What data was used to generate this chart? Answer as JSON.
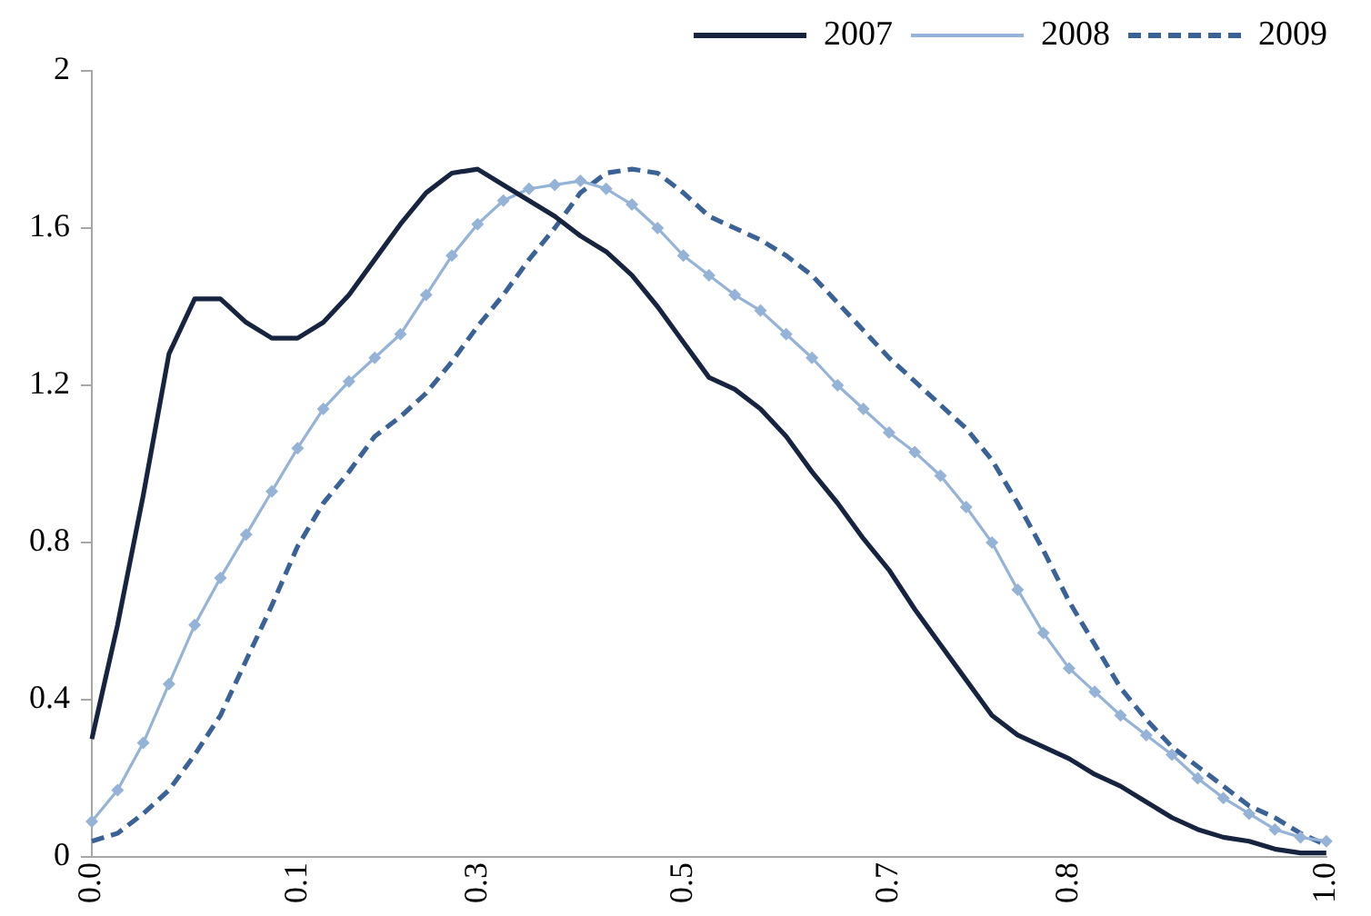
{
  "chart_data": {
    "type": "line",
    "categories": [
      "0.0",
      null,
      null,
      null,
      null,
      null,
      null,
      null,
      "0.1",
      null,
      null,
      null,
      null,
      null,
      null,
      "0.3",
      null,
      null,
      null,
      null,
      null,
      null,
      null,
      "0.5",
      null,
      null,
      null,
      null,
      null,
      null,
      null,
      "0.7",
      null,
      null,
      null,
      null,
      null,
      null,
      "0.8",
      null,
      null,
      null,
      null,
      null,
      null,
      null,
      null,
      null,
      "1.0"
    ],
    "series": [
      {
        "name": "2007",
        "color": "#16243f",
        "marker": "none",
        "line_style": "solid",
        "values": [
          0.3,
          0.59,
          0.92,
          1.28,
          1.42,
          1.42,
          1.36,
          1.32,
          1.32,
          1.36,
          1.43,
          1.52,
          1.61,
          1.69,
          1.74,
          1.75,
          1.71,
          1.67,
          1.63,
          1.58,
          1.54,
          1.48,
          1.4,
          1.31,
          1.22,
          1.19,
          1.14,
          1.07,
          0.98,
          0.9,
          0.81,
          0.73,
          0.63,
          0.54,
          0.45,
          0.36,
          0.31,
          0.28,
          0.25,
          0.21,
          0.18,
          0.14,
          0.1,
          0.07,
          0.05,
          0.04,
          0.02,
          0.01,
          0.01
        ]
      },
      {
        "name": "2008",
        "color": "#95b3d7",
        "marker": "diamond",
        "line_style": "solid",
        "values": [
          0.09,
          0.17,
          0.29,
          0.44,
          0.59,
          0.71,
          0.82,
          0.93,
          1.04,
          1.14,
          1.21,
          1.27,
          1.33,
          1.43,
          1.53,
          1.61,
          1.67,
          1.7,
          1.71,
          1.72,
          1.7,
          1.66,
          1.6,
          1.53,
          1.48,
          1.43,
          1.39,
          1.33,
          1.27,
          1.2,
          1.14,
          1.08,
          1.03,
          0.97,
          0.89,
          0.8,
          0.68,
          0.57,
          0.48,
          0.42,
          0.36,
          0.31,
          0.26,
          0.2,
          0.15,
          0.11,
          0.07,
          0.05,
          0.04
        ]
      },
      {
        "name": "2009",
        "color": "#3a6297",
        "marker": "none",
        "line_style": "dashed",
        "values": [
          0.04,
          0.06,
          0.11,
          0.17,
          0.26,
          0.36,
          0.5,
          0.64,
          0.79,
          0.9,
          0.98,
          1.07,
          1.12,
          1.18,
          1.26,
          1.35,
          1.43,
          1.52,
          1.6,
          1.69,
          1.74,
          1.75,
          1.74,
          1.69,
          1.63,
          1.6,
          1.57,
          1.53,
          1.48,
          1.41,
          1.34,
          1.27,
          1.21,
          1.15,
          1.09,
          1.01,
          0.9,
          0.78,
          0.65,
          0.54,
          0.43,
          0.35,
          0.28,
          0.23,
          0.18,
          0.13,
          0.1,
          0.06,
          0.03
        ]
      }
    ],
    "ylim": [
      0,
      2
    ],
    "yticks": [
      0,
      0.4,
      0.8,
      1.2,
      1.6,
      2
    ],
    "grid": false,
    "legend": "top right"
  }
}
